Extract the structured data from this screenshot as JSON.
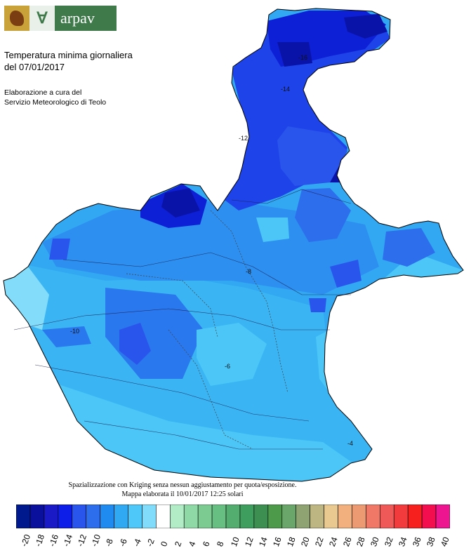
{
  "header": {
    "brand": "arpav",
    "title_line1": "Temperatura minima giornaliera",
    "title_line2": "del 07/01/2017",
    "credit_line1": "Elaborazione a cura del",
    "credit_line2": "Servizio Meteorologico di Teolo"
  },
  "notes": {
    "line1": "Spazializzazione con Kriging senza nessun aggiustamento per quota/esposizione.",
    "line2": "Mappa elaborata il 10/01/2017 12:25 solari"
  },
  "map": {
    "contour_labels": [
      "-8",
      "-10",
      "-12",
      "-14",
      "-16",
      "-6",
      "-4"
    ]
  },
  "chart_data": {
    "type": "heatmap",
    "legend": {
      "values": [
        "-20",
        "-18",
        "-16",
        "-14",
        "-12",
        "-10",
        "-8",
        "-6",
        "-4",
        "-2",
        "0",
        "2",
        "4",
        "6",
        "8",
        "10",
        "12",
        "14",
        "16",
        "18",
        "20",
        "22",
        "24",
        "26",
        "28",
        "30",
        "32",
        "34",
        "36",
        "38",
        "40"
      ],
      "colors": [
        "#00198c",
        "#0a0f9c",
        "#1a1ac6",
        "#0d1ee8",
        "#2a55ec",
        "#2d6eed",
        "#1f8bf0",
        "#30a9f2",
        "#4ec8f8",
        "#80dcfa",
        "#ffffff",
        "#b2ecc6",
        "#8ed9a6",
        "#7ccc92",
        "#68bf82",
        "#52ad6f",
        "#3e9e5d",
        "#3c8f50",
        "#4c9a4a",
        "#6aa569",
        "#8ea272",
        "#bdb582",
        "#e9c98f",
        "#f1b07e",
        "#ec9a72",
        "#ef7966",
        "#ef5a58",
        "#f23b3d",
        "#f6201f",
        "#f30e4f",
        "#ee1590"
      ]
    }
  }
}
